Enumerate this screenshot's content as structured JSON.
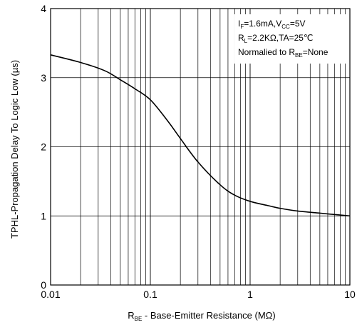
{
  "chart_data": {
    "type": "line",
    "title": "",
    "xscale": "log",
    "xlim": [
      0.01,
      10
    ],
    "ylim": [
      0,
      4
    ],
    "grid": true,
    "x_ticks": [
      0.01,
      0.1,
      1,
      10
    ],
    "x_tick_labels": [
      "0.01",
      "0.1",
      "1",
      "10"
    ],
    "y_ticks": [
      0,
      1,
      2,
      3,
      4
    ],
    "y_tick_labels": [
      "0",
      "1",
      "2",
      "3",
      "4"
    ],
    "xlabel": {
      "main": "R",
      "sub": "BE",
      "rest": " - Base-Emitter Resistance (MΩ)"
    },
    "ylabel": "TPHL-Propagation Delay To Logic Low (µs)",
    "legend_placement": "top-right",
    "conditions": {
      "line1": {
        "a": "I",
        "a_sub": "F",
        "b": "=1.6mA,V",
        "b_sub": "CC",
        "c": "=5V"
      },
      "line2": {
        "a": "R",
        "a_sub": "L",
        "b": "=2.2KΩ,TA=25℃"
      },
      "line3": {
        "a": "Normalied to R",
        "a_sub": "BE",
        "b": "=None"
      }
    },
    "series": [
      {
        "x": [
          0.01,
          0.02,
          0.035,
          0.05,
          0.07,
          0.1,
          0.15,
          0.2,
          0.3,
          0.5,
          0.7,
          1.0,
          1.5,
          2.0,
          3.0,
          5.0,
          7.0,
          10.0
        ],
        "y": [
          3.33,
          3.22,
          3.1,
          2.97,
          2.84,
          2.68,
          2.37,
          2.12,
          1.78,
          1.45,
          1.3,
          1.21,
          1.15,
          1.11,
          1.07,
          1.04,
          1.02,
          1.0
        ]
      }
    ],
    "line_color": "#000000"
  }
}
